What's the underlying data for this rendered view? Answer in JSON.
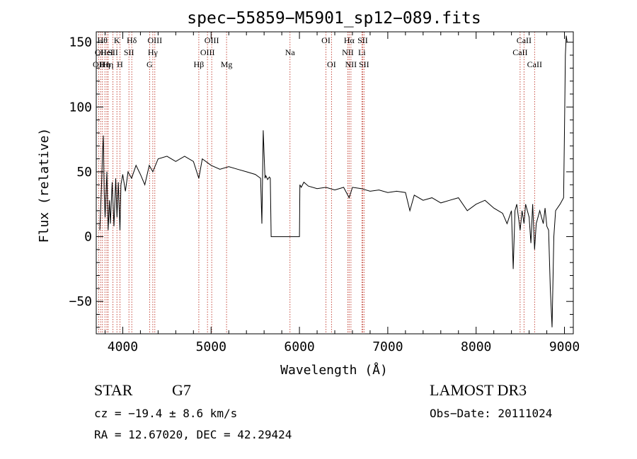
{
  "chart_data": {
    "type": "line",
    "title": "spec−55859−M5901_sp12−089.fits",
    "xlabel": "Wavelength (Å)",
    "ylabel": "Flux (relative)",
    "xlim": [
      3700,
      9100
    ],
    "ylim": [
      -75,
      158
    ],
    "x_ticks": [
      4000,
      5000,
      6000,
      7000,
      8000,
      9000
    ],
    "x_tick_labels": [
      "4000",
      "5000",
      "6000",
      "7000",
      "8000",
      "9000"
    ],
    "y_ticks": [
      -50,
      0,
      50,
      100,
      150
    ],
    "y_tick_labels": [
      "−50",
      "0",
      "50",
      "100",
      "150"
    ],
    "series": [
      {
        "name": "flux",
        "x": [
          3740,
          3760,
          3770,
          3780,
          3790,
          3800,
          3820,
          3835,
          3850,
          3860,
          3880,
          3900,
          3920,
          3935,
          3950,
          3968,
          3980,
          4000,
          4030,
          4060,
          4100,
          4150,
          4200,
          4250,
          4300,
          4340,
          4400,
          4500,
          4600,
          4700,
          4800,
          4861,
          4900,
          5000,
          5100,
          5200,
          5300,
          5400,
          5500,
          5560,
          5575,
          5590,
          5610,
          5620,
          5640,
          5660,
          5670,
          5680,
          5700,
          6000,
          6005,
          6020,
          6050,
          6100,
          6200,
          6300,
          6400,
          6500,
          6563,
          6600,
          6700,
          6800,
          6900,
          7000,
          7100,
          7200,
          7250,
          7300,
          7400,
          7500,
          7600,
          7700,
          7800,
          7900,
          8000,
          8100,
          8200,
          8300,
          8350,
          8400,
          8420,
          8440,
          8460,
          8498,
          8520,
          8542,
          8560,
          8600,
          8620,
          8640,
          8662,
          8680,
          8700,
          8720,
          8740,
          8760,
          8780,
          8800,
          8820,
          8840,
          8860,
          8880,
          8900,
          8950,
          8990,
          9000,
          9010,
          9020,
          9030
        ],
        "y": [
          5,
          40,
          62,
          78,
          35,
          15,
          50,
          5,
          28,
          10,
          42,
          8,
          45,
          15,
          42,
          5,
          40,
          48,
          35,
          50,
          45,
          55,
          48,
          40,
          55,
          50,
          60,
          62,
          58,
          62,
          58,
          45,
          60,
          55,
          52,
          54,
          52,
          50,
          48,
          45,
          10,
          82,
          45,
          47,
          44,
          46,
          45,
          0,
          0,
          0,
          40,
          38,
          42,
          39,
          37,
          38,
          36,
          38,
          30,
          38,
          37,
          35,
          36,
          34,
          35,
          34,
          20,
          32,
          28,
          30,
          26,
          28,
          30,
          20,
          25,
          28,
          22,
          18,
          10,
          20,
          -25,
          20,
          25,
          5,
          20,
          10,
          25,
          15,
          -5,
          25,
          -10,
          10,
          15,
          20,
          15,
          10,
          22,
          8,
          5,
          -40,
          -70,
          0,
          20,
          25,
          30,
          80,
          140,
          155,
          150
        ]
      }
    ],
    "line_labels": [
      {
        "x": 3727,
        "label": "OII",
        "row": 2
      },
      {
        "x": 3750,
        "label": "OII",
        "row": 1
      },
      {
        "x": 3770,
        "label": "Hθ",
        "row": 0
      },
      {
        "x": 3798,
        "label": "Hη",
        "row": 2
      },
      {
        "x": 3820,
        "label": "HeI",
        "row": 1
      },
      {
        "x": 3835,
        "label": "Hη",
        "row": 2
      },
      {
        "x": 3889,
        "label": "SII",
        "row": 1
      },
      {
        "x": 3934,
        "label": "K",
        "row": 0
      },
      {
        "x": 3968,
        "label": "H",
        "row": 2
      },
      {
        "x": 4070,
        "label": "SII",
        "row": 1
      },
      {
        "x": 4102,
        "label": "Hδ",
        "row": 0
      },
      {
        "x": 4304,
        "label": "G",
        "row": 2
      },
      {
        "x": 4340,
        "label": "Hγ",
        "row": 1
      },
      {
        "x": 4363,
        "label": "OIII",
        "row": 0
      },
      {
        "x": 4861,
        "label": "Hβ",
        "row": 2
      },
      {
        "x": 4959,
        "label": "OIII",
        "row": 1
      },
      {
        "x": 5007,
        "label": "OIII",
        "row": 0
      },
      {
        "x": 5175,
        "label": "Mg",
        "row": 2
      },
      {
        "x": 5893,
        "label": "Na",
        "row": 1
      },
      {
        "x": 6300,
        "label": "OI",
        "row": 0
      },
      {
        "x": 6363,
        "label": "OI",
        "row": 2
      },
      {
        "x": 6548,
        "label": "NII",
        "row": 1
      },
      {
        "x": 6563,
        "label": "Hα",
        "row": 0
      },
      {
        "x": 6583,
        "label": "NII",
        "row": 2
      },
      {
        "x": 6707,
        "label": "Li",
        "row": 1
      },
      {
        "x": 6716,
        "label": "SII",
        "row": 0
      },
      {
        "x": 6731,
        "label": "SII",
        "row": 2
      },
      {
        "x": 8498,
        "label": "CaII",
        "row": 1
      },
      {
        "x": 8542,
        "label": "CaII",
        "row": 0
      },
      {
        "x": 8662,
        "label": "CaII",
        "row": 2
      }
    ]
  },
  "footer": {
    "object_type": "STAR",
    "subclass": "G7",
    "survey": "LAMOST DR3",
    "cz": "cz = −19.4 ± 8.6 km/s",
    "obs_date": "Obs−Date: 20111024",
    "radec": "RA =  12.67020, DEC =  42.29424"
  }
}
